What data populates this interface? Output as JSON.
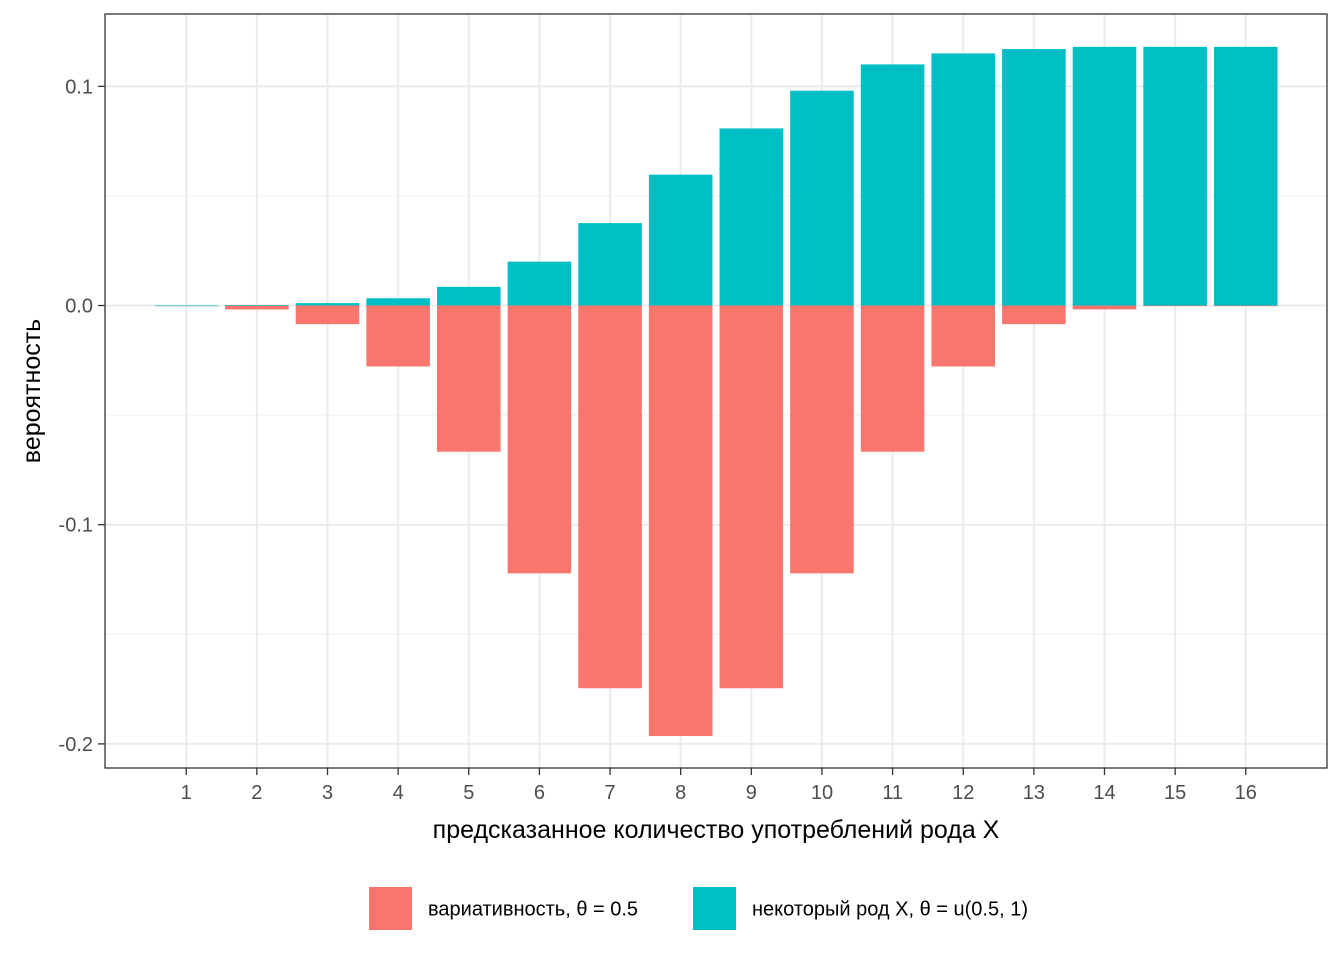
{
  "chart_data": {
    "type": "bar",
    "xlabel": "предсказанное количество употреблений рода X",
    "ylabel": "вероятность",
    "categories": [
      "1",
      "2",
      "3",
      "4",
      "5",
      "6",
      "7",
      "8",
      "9",
      "10",
      "11",
      "12",
      "13",
      "14",
      "15",
      "16"
    ],
    "ylim": [
      -0.211,
      0.133
    ],
    "yticks": [
      -0.2,
      -0.1,
      0.0,
      0.1
    ],
    "ytick_labels": [
      "-0.2",
      "-0.1",
      "0.0",
      "0.1"
    ],
    "grid": true,
    "legend_position": "bottom",
    "series": [
      {
        "name": "вариативность, θ = 0.5",
        "color": "#F8766D",
        "values": [
          -0.0002,
          -0.0018,
          -0.0085,
          -0.0278,
          -0.0667,
          -0.1222,
          -0.1746,
          -0.1964,
          -0.1746,
          -0.1222,
          -0.0667,
          -0.0278,
          -0.0085,
          -0.0018,
          -0.0002,
          0
        ]
      },
      {
        "name": "некоторый род X, θ = u(0.5, 1)",
        "color": "#00BFC4",
        "values": [
          0.0,
          0.0002,
          0.0011,
          0.0033,
          0.0085,
          0.02,
          0.0376,
          0.0597,
          0.0808,
          0.098,
          0.11,
          0.115,
          0.117,
          0.118,
          0.118,
          0.118
        ]
      }
    ]
  }
}
